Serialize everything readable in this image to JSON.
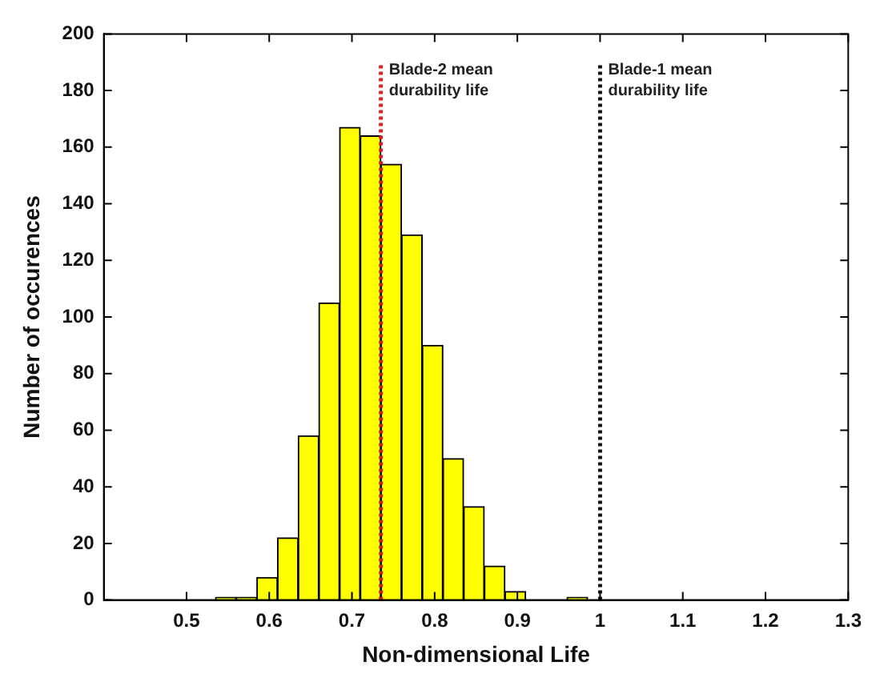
{
  "chart_data": {
    "type": "histogram",
    "xlabel": "Non-dimensional Life",
    "ylabel": "Number of occurences",
    "bins": [
      0.535,
      0.56,
      0.585,
      0.61,
      0.635,
      0.66,
      0.685,
      0.71,
      0.735,
      0.76,
      0.785,
      0.81,
      0.835,
      0.86,
      0.885,
      0.91,
      0.935,
      0.96,
      0.985
    ],
    "values": [
      1,
      1,
      8,
      22,
      58,
      105,
      167,
      164,
      154,
      129,
      90,
      50,
      33,
      12,
      3,
      0,
      0,
      1
    ],
    "color": "#ffff00",
    "xlim": [
      0.4,
      1.3
    ],
    "xticks": [
      0.5,
      0.6,
      0.7,
      0.8,
      0.9,
      1,
      1.1,
      1.2,
      1.3
    ],
    "ylim": [
      0,
      200
    ],
    "yticks": [
      0,
      20,
      40,
      60,
      80,
      100,
      120,
      140,
      160,
      180,
      200
    ],
    "grid": false,
    "legend": false,
    "ref_lines": [
      {
        "axis": "x",
        "value": 0.735,
        "label": "Blade-2 mean\ndurability life",
        "color": "#d42020",
        "line_style": "dotted"
      },
      {
        "axis": "x",
        "value": 1,
        "label": "Blade-1 mean\ndurability life",
        "color": "#111111",
        "line_style": "dotted"
      }
    ]
  }
}
